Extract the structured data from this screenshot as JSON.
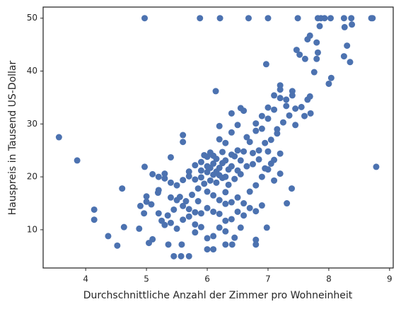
{
  "chart_data": {
    "type": "scatter",
    "xlabel": "Durchschnittliche Anzahl der Zimmer pro Wohneinheit",
    "ylabel": "Hauspreis in Tausend US-Dollar",
    "color": "#4c72b0",
    "xlim": [
      3.3,
      9.06
    ],
    "ylim": [
      2.77,
      52.1
    ],
    "xticks": [
      4,
      5,
      6,
      7,
      8,
      9
    ],
    "yticks": [
      10,
      20,
      30,
      40,
      50
    ],
    "x": [
      3.56,
      3.86,
      4.14,
      4.14,
      4.37,
      4.52,
      4.6,
      4.63,
      4.88,
      4.9,
      4.96,
      4.97,
      4.97,
      5.0,
      5.0,
      5.04,
      5.1,
      5.08,
      5.19,
      5.88,
      6.21,
      6.68,
      7.0,
      7.49,
      7.82,
      7.87,
      7.93,
      8.03,
      8.25,
      8.37,
      8.7,
      8.72,
      8.78,
      8.38,
      8.26,
      8.3,
      8.25,
      8.35,
      8.04,
      8.0,
      7.8,
      7.82,
      7.8,
      7.85,
      7.69,
      7.65,
      7.47,
      7.52,
      7.61,
      7.76,
      7.69,
      6.97,
      6.14,
      7.39,
      7.31,
      6.98,
      6.8,
      6.8,
      6.55,
      6.41,
      6.3,
      6.0,
      5.57,
      5.45,
      5.7,
      5.36,
      5.58,
      5.6,
      5.6,
      5.4,
      5.7,
      5.8,
      5.9,
      6.0,
      6.1,
      6.2,
      6.3,
      6.4,
      6.5,
      6.6,
      6.7,
      6.8,
      6.9,
      7.0,
      7.1,
      7.2,
      7.3,
      7.4,
      7.2,
      7.1,
      7.0,
      6.9,
      6.8,
      6.6,
      6.5,
      6.4,
      6.2,
      6.3,
      6.1,
      6.0,
      5.9,
      5.8,
      5.7,
      5.6,
      5.5,
      5.4,
      5.3,
      5.3,
      5.2,
      5.1,
      5.2,
      5.4,
      5.5,
      5.6,
      5.7,
      5.8,
      5.9,
      6.0,
      6.1,
      6.2,
      6.3,
      6.4,
      6.5,
      6.6,
      6.7,
      6.8,
      6.9,
      7.0,
      7.1,
      7.2,
      7.1,
      6.95,
      6.85,
      6.75,
      6.65,
      6.55,
      6.45,
      6.35,
      6.25,
      6.15,
      6.05,
      5.95,
      5.85,
      5.75,
      5.65,
      5.55,
      5.45,
      5.35,
      5.25,
      5.2,
      5.3,
      5.4,
      5.5,
      5.6,
      5.7,
      5.8,
      5.9,
      6.0,
      6.1,
      6.2,
      6.3,
      6.4,
      6.5,
      6.6,
      6.7,
      6.8,
      6.9,
      6.45,
      6.35,
      6.25,
      6.15,
      6.05,
      5.95,
      6.55,
      6.65,
      6.75,
      6.85,
      6.95,
      7.05,
      7.15,
      7.25,
      7.35,
      7.45,
      7.55,
      7.65,
      7.45,
      7.6,
      7.7,
      7.3,
      7.2,
      7.4,
      7.15,
      7.0,
      7.05,
      7.2,
      6.2,
      6.4,
      6.55,
      6.0,
      6.1,
      6.2,
      6.3,
      5.85,
      5.9,
      6.0,
      6.1,
      6.2,
      6.3,
      6.4,
      6.5,
      6.05,
      6.15,
      6.25,
      5.8,
      6.1,
      6.3,
      6.45
    ],
    "values": [
      27.5,
      23.1,
      13.8,
      11.9,
      8.8,
      7.0,
      17.8,
      10.5,
      10.2,
      14.5,
      13.1,
      50,
      21.9,
      16.3,
      15.3,
      7.5,
      8.2,
      14.8,
      17.0,
      50,
      50,
      50,
      50,
      50,
      50,
      50,
      50,
      50,
      50,
      50,
      50,
      50,
      21.9,
      48.8,
      48.3,
      44.8,
      42.8,
      41.7,
      38.7,
      37.6,
      45.4,
      43.5,
      42.3,
      48.5,
      46.7,
      46.0,
      44.0,
      43.1,
      42.3,
      39.8,
      35.2,
      41.3,
      36.2,
      17.8,
      15.0,
      10.4,
      8.1,
      7.2,
      10.4,
      7.2,
      7.2,
      6.3,
      5.0,
      5.0,
      5.0,
      7.2,
      7.2,
      27.9,
      26.6,
      23.7,
      20.1,
      19.5,
      21.2,
      22.0,
      20.4,
      21.7,
      23.1,
      24.2,
      25.0,
      24.8,
      26.6,
      28.7,
      29.1,
      31.0,
      32.7,
      34.9,
      33.4,
      36.2,
      36.5,
      35.4,
      33.1,
      31.5,
      30.1,
      32.5,
      29.8,
      28.4,
      29.6,
      26.4,
      24.0,
      23.8,
      22.8,
      22.2,
      21.0,
      19.4,
      18.4,
      18.9,
      20.6,
      19.7,
      20.0,
      20.5,
      17.5,
      16.1,
      15.6,
      14.5,
      13.9,
      13.3,
      13.1,
      14.1,
      13.4,
      13.0,
      14.9,
      15.2,
      16.1,
      15.0,
      17.2,
      18.4,
      20.0,
      21.4,
      23.2,
      20.6,
      19.3,
      21.6,
      23.3,
      24.5,
      22.0,
      20.5,
      19.6,
      18.5,
      19.8,
      18.9,
      19.3,
      18.7,
      17.8,
      16.6,
      15.4,
      16.2,
      13.8,
      12.7,
      11.7,
      13.1,
      10.9,
      11.3,
      10.2,
      11.9,
      12.5,
      11.0,
      10.5,
      8.4,
      8.8,
      10.4,
      11.7,
      12.0,
      13.4,
      12.7,
      14.1,
      13.5,
      14.6,
      23.9,
      21.4,
      22.6,
      23.4,
      24.6,
      24.1,
      23.1,
      27.5,
      22.4,
      25.0,
      26.4,
      27.0,
      28.2,
      30.3,
      31.6,
      32.9,
      33.2,
      34.6,
      29.8,
      31.5,
      32.0,
      34.6,
      37.3,
      35.4,
      29.0,
      24.8,
      22.5,
      24.4,
      27.1,
      32.0,
      33.0,
      17.2,
      16.5,
      15.6,
      17.1,
      15.4,
      19.9,
      20.9,
      22.5,
      20.3,
      20.0,
      22.0,
      21.2,
      21.7,
      21.0,
      24.7,
      9.5,
      6.3,
      9.7,
      8.5
    ]
  }
}
